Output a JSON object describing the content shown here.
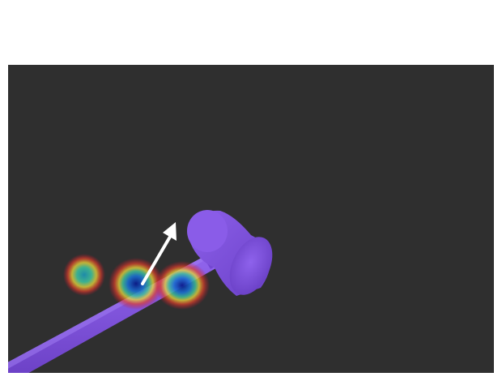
{
  "scene": {
    "object": "hammer",
    "background_color": "#2f2f2f",
    "hammer_color": "#7b4fd6",
    "arrow_color": "#ffffff",
    "heatmap_blobs": 3
  }
}
